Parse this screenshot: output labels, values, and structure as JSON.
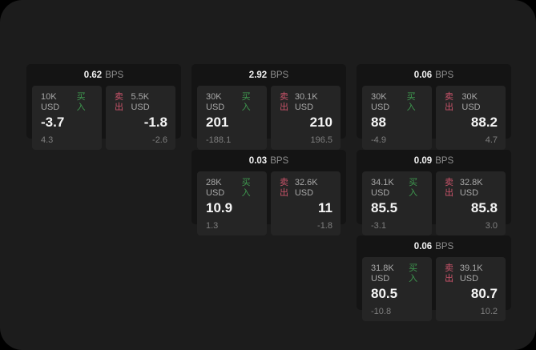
{
  "colors": {
    "screen_bg": "#1c1c1c",
    "card_bg": "#141414",
    "panel_bg": "#252525",
    "buy": "#3f9a50",
    "sell": "#c9546a"
  },
  "labels": {
    "bps_unit": "BPS",
    "buy": "买入",
    "sell": "卖出"
  },
  "cards": [
    {
      "col": 1,
      "row": 1,
      "bps": "0.62",
      "buy": {
        "volume": "10K USD",
        "price": "-3.7",
        "delta": "4.3"
      },
      "sell": {
        "volume": "5.5K USD",
        "price": "-1.8",
        "delta": "-2.6"
      }
    },
    {
      "col": 2,
      "row": 1,
      "bps": "2.92",
      "buy": {
        "volume": "30K USD",
        "price": "201",
        "delta": "-188.1"
      },
      "sell": {
        "volume": "30.1K USD",
        "price": "210",
        "delta": "196.5"
      }
    },
    {
      "col": 3,
      "row": 1,
      "bps": "0.06",
      "buy": {
        "volume": "30K USD",
        "price": "88",
        "delta": "-4.9"
      },
      "sell": {
        "volume": "30K USD",
        "price": "88.2",
        "delta": "4.7"
      }
    },
    {
      "col": 2,
      "row": 2,
      "bps": "0.03",
      "buy": {
        "volume": "28K USD",
        "price": "10.9",
        "delta": "1.3"
      },
      "sell": {
        "volume": "32.6K USD",
        "price": "11",
        "delta": "-1.8"
      }
    },
    {
      "col": 3,
      "row": 2,
      "bps": "0.09",
      "buy": {
        "volume": "34.1K USD",
        "price": "85.5",
        "delta": "-3.1"
      },
      "sell": {
        "volume": "32.8K USD",
        "price": "85.8",
        "delta": "3.0"
      }
    },
    {
      "col": 3,
      "row": 3,
      "bps": "0.06",
      "buy": {
        "volume": "31.8K USD",
        "price": "80.5",
        "delta": "-10.8"
      },
      "sell": {
        "volume": "39.1K USD",
        "price": "80.7",
        "delta": "10.2"
      }
    }
  ]
}
